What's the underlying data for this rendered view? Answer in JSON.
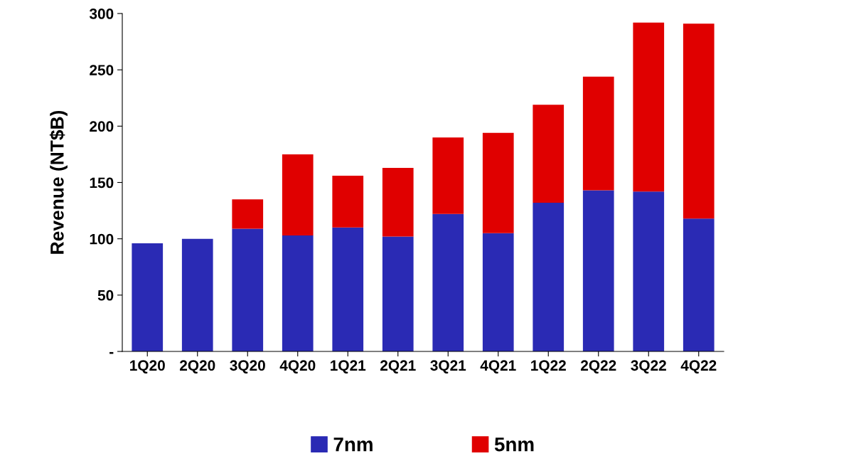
{
  "chart_data": {
    "type": "bar",
    "stacked": true,
    "ylabel": "Revenue (NT$B)",
    "categories": [
      "1Q20",
      "2Q20",
      "3Q20",
      "4Q20",
      "1Q21",
      "2Q21",
      "3Q21",
      "4Q21",
      "1Q22",
      "2Q22",
      "3Q22",
      "4Q22"
    ],
    "series": [
      {
        "name": "7nm",
        "color": "#2a2ab4",
        "values": [
          96,
          100,
          109,
          103,
          110,
          102,
          122,
          105,
          132,
          143,
          142,
          118
        ]
      },
      {
        "name": "5nm",
        "color": "#e00000",
        "values": [
          null,
          null,
          26,
          72,
          46,
          61,
          68,
          89,
          87,
          101,
          150,
          173
        ]
      }
    ],
    "ylim": [
      0,
      300
    ],
    "yticks": [
      {
        "value": 0,
        "label": "-"
      },
      50,
      100,
      150,
      200,
      250,
      300
    ],
    "grid": false,
    "legend": "bottom"
  }
}
